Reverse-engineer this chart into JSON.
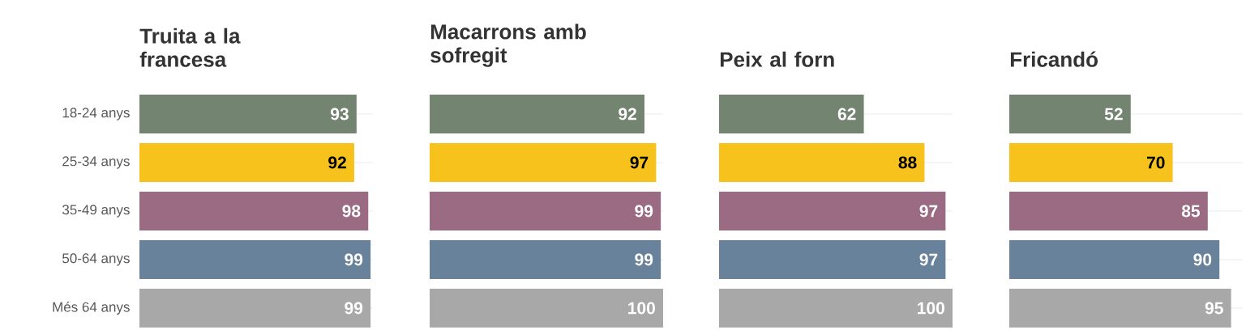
{
  "chart_data": [
    {
      "type": "bar",
      "orientation": "horizontal",
      "title": "Truita a la francesa",
      "categories": [
        "18-24 anys",
        "25-34 anys",
        "35-49 anys",
        "50-64 anys",
        "Més 64 anys"
      ],
      "values": [
        93,
        92,
        98,
        99,
        99
      ],
      "colors": [
        "#738570",
        "#f8c21c",
        "#9a6b82",
        "#67829a",
        "#a8a8a8"
      ],
      "xlim": [
        0,
        100
      ],
      "data_labels": true,
      "grid": "y",
      "tick_labels": "y"
    },
    {
      "type": "bar",
      "orientation": "horizontal",
      "title": "Macarrons amb sofregit",
      "categories": [
        null,
        null,
        null,
        null,
        null
      ],
      "values": [
        92,
        97,
        99,
        99,
        100
      ],
      "colors": [
        "#738570",
        "#f8c21c",
        "#9a6b82",
        "#67829a",
        "#a8a8a8"
      ],
      "xlim": [
        0,
        100
      ],
      "data_labels": true,
      "grid": "y",
      "tick_labels": false
    },
    {
      "type": "bar",
      "orientation": "horizontal",
      "title": "Peix al forn",
      "categories": [
        null,
        null,
        null,
        null,
        null
      ],
      "values": [
        62,
        88,
        97,
        97,
        100
      ],
      "colors": [
        "#738570",
        "#f8c21c",
        "#9a6b82",
        "#67829a",
        "#a8a8a8"
      ],
      "xlim": [
        0,
        100
      ],
      "data_labels": true,
      "grid": "y",
      "tick_labels": false
    },
    {
      "type": "bar",
      "orientation": "horizontal",
      "title": "Fricandó",
      "categories": [
        null,
        null,
        null,
        null,
        null
      ],
      "values": [
        52,
        70,
        85,
        90,
        95
      ],
      "colors": [
        "#738570",
        "#f8c21c",
        "#9a6b82",
        "#67829a",
        "#a8a8a8"
      ],
      "xlim": [
        0,
        100
      ],
      "data_labels": true,
      "grid": "y",
      "tick_labels": false
    }
  ]
}
